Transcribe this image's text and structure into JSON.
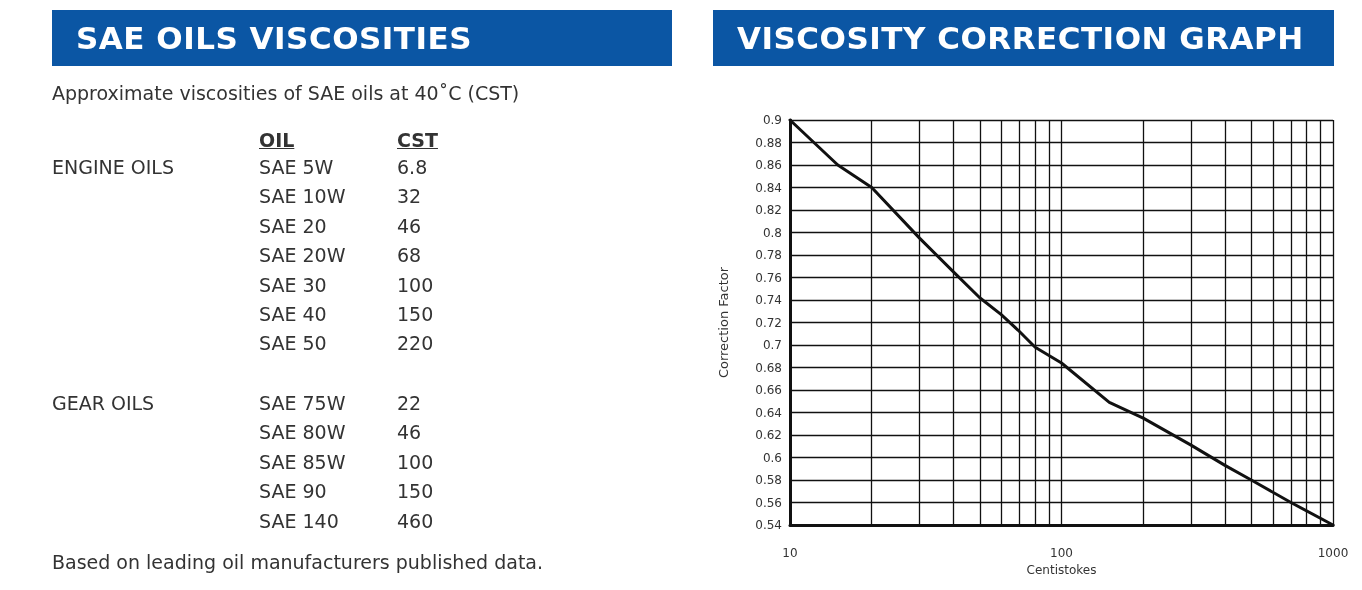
{
  "chart_data": [
    {
      "type": "other",
      "title": "SAE OILS VISCOSITIES",
      "subtitle": "Approximate viscosities of SAE oils at 40˚C (CST)",
      "xlabel": "OIL",
      "ylabel": "CST",
      "categories": [
        "SAE 5W",
        "SAE 10W",
        "SAE 20",
        "SAE 20W",
        "SAE 30",
        "SAE 40",
        "SAE 50",
        "SAE 75W",
        "SAE 80W",
        "SAE 85W",
        "SAE 90",
        "SAE 140"
      ],
      "values": [
        6.8,
        32,
        46,
        68,
        100,
        150,
        220,
        22,
        46,
        100,
        150,
        460
      ],
      "data_labels": true,
      "annotations": [
        "ENGINE OILS",
        "GEAR OILS",
        "Based on leading oil manufacturers published data."
      ]
    },
    {
      "type": "line",
      "title": "VISCOSITY CORRECTION GRAPH",
      "xlabel": "Centistokes",
      "ylabel": "Correction Factor",
      "log": "x",
      "grid": true,
      "marker": "none",
      "x": [
        10,
        15,
        20,
        30,
        40,
        50,
        60,
        70,
        80,
        100,
        150,
        200,
        300,
        400,
        500,
        700,
        1000
      ],
      "series": [
        {
          "color": "#111111",
          "values": [
            0.9,
            0.86,
            0.84,
            0.795,
            0.765,
            0.742,
            0.727,
            0.712,
            0.698,
            0.684,
            0.649,
            0.635,
            0.611,
            0.593,
            0.58,
            0.56,
            0.54
          ]
        }
      ],
      "xlim": [
        10,
        1000
      ],
      "xticks": [
        10,
        {
          "value": 20,
          "label": null
        },
        {
          "value": 30,
          "label": null
        },
        {
          "value": 40,
          "label": null
        },
        {
          "value": 50,
          "label": null
        },
        {
          "value": 60,
          "label": null
        },
        {
          "value": 70,
          "label": null
        },
        {
          "value": 80,
          "label": null
        },
        {
          "value": 90,
          "label": null
        },
        100,
        {
          "value": 200,
          "label": null
        },
        {
          "value": 300,
          "label": null
        },
        {
          "value": 400,
          "label": null
        },
        {
          "value": 500,
          "label": null
        },
        {
          "value": 600,
          "label": null
        },
        {
          "value": 700,
          "label": null
        },
        {
          "value": 800,
          "label": null
        },
        {
          "value": 900,
          "label": null
        },
        1000
      ],
      "ylim": [
        0.54,
        0.9
      ],
      "yticks": [
        0.54,
        0.56,
        0.58,
        0.6,
        0.62,
        0.64,
        0.66,
        0.68,
        0.7,
        0.72,
        0.74,
        0.76,
        0.78,
        0.8,
        0.82,
        0.84,
        0.86,
        0.88,
        0.9
      ]
    }
  ]
}
